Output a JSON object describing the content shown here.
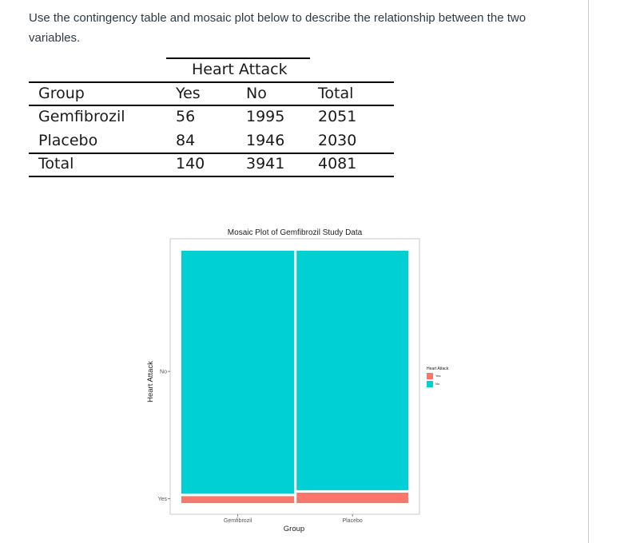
{
  "question": "Use the contingency table and mosaic plot below to describe the relationship between the two variables.",
  "table": {
    "spanner": "Heart Attack",
    "header": [
      "Group",
      "Yes",
      "No",
      "Total"
    ],
    "rows": [
      [
        "Gemfibrozil",
        "56",
        "1995",
        "2051"
      ],
      [
        "Placebo",
        "84",
        "1946",
        "2030"
      ],
      [
        "Total",
        "140",
        "3941",
        "4081"
      ]
    ]
  },
  "chart_data": {
    "type": "mosaic",
    "title": "Mosaic Plot of Gemfibrozil Study Data",
    "xlabel": "Group",
    "ylabel": "Heart Attack",
    "categories": [
      "Gemfibrozil",
      "Placebo"
    ],
    "y_ticks": [
      "No",
      "Yes"
    ],
    "legend_title": "Heart Attack",
    "legend_placement": "right",
    "series": [
      {
        "name": "Yes",
        "values": [
          56,
          84
        ],
        "color": "#F8766D"
      },
      {
        "name": "No",
        "values": [
          1995,
          1946
        ],
        "color": "#00D0D4"
      }
    ]
  }
}
